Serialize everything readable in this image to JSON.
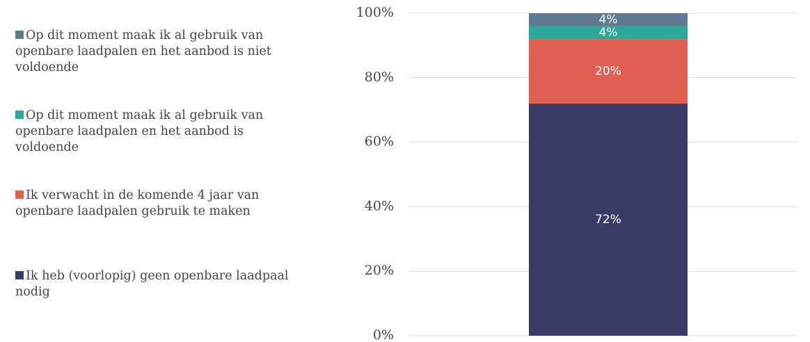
{
  "chart_data": {
    "type": "stacked-bar",
    "categories": [
      null
    ],
    "series": [
      {
        "name": "Ik heb (voorlopig) geen openbare laadpaal nodig",
        "color": "#393c66",
        "values": [
          72
        ],
        "value_labels": [
          "72%"
        ]
      },
      {
        "name": "Ik verwacht in de komende 4 jaar van openbare laadpalen gebruik te maken",
        "color": "#e05f53",
        "values": [
          20
        ],
        "value_labels": [
          "20%"
        ]
      },
      {
        "name": "Op dit moment maak ik al gebruik van openbare laadpalen en het aanbod is voldoende",
        "color": "#2aa89a",
        "values": [
          4
        ],
        "value_labels": [
          "4%"
        ]
      },
      {
        "name": "Op dit moment maak ik al gebruik van openbare laadpalen en het aanbod is niet voldoende",
        "color": "#5e7a91",
        "values": [
          4
        ],
        "value_labels": [
          "4%"
        ]
      }
    ],
    "ylim": [
      0,
      100
    ],
    "yticks": [
      {
        "value": 0,
        "label": "0%"
      },
      {
        "value": 20,
        "label": "20%"
      },
      {
        "value": 40,
        "label": "40%"
      },
      {
        "value": 60,
        "label": "60%"
      },
      {
        "value": 80,
        "label": "80%"
      },
      {
        "value": 100,
        "label": "100%"
      }
    ],
    "grid": true,
    "legend": "left"
  }
}
